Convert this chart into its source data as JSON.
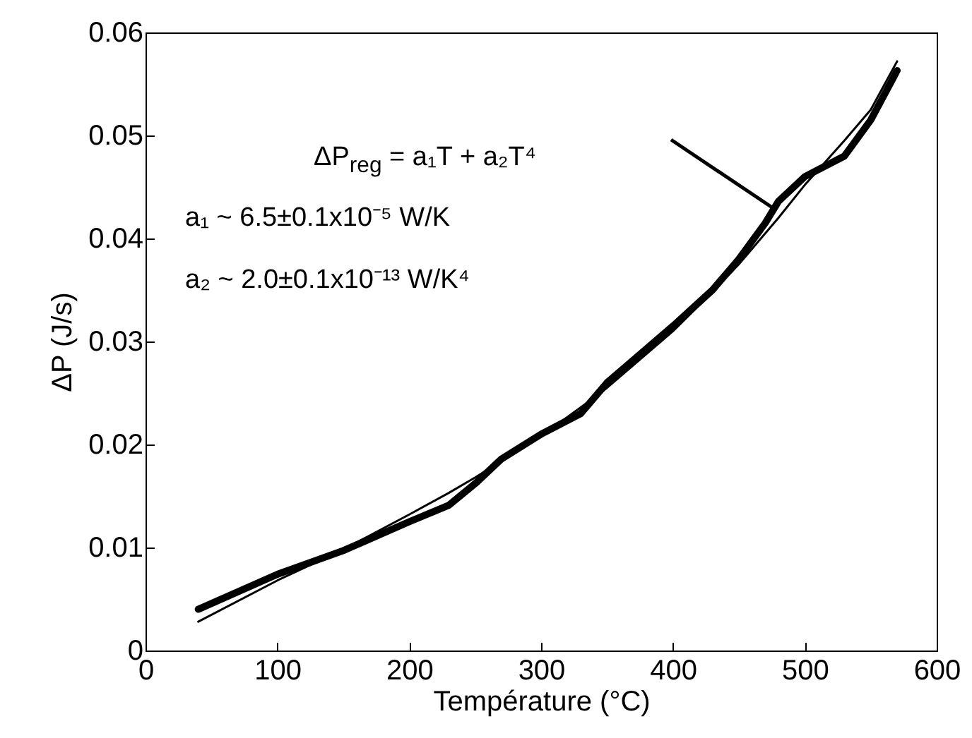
{
  "chart_data": {
    "type": "line",
    "xlabel": "Température (°C)",
    "ylabel": "ΔP (J/s)",
    "x": [
      40,
      100,
      150,
      200,
      230,
      250,
      270,
      300,
      330,
      350,
      400,
      430,
      450,
      470,
      480,
      500,
      530,
      550,
      570
    ],
    "series": [
      {
        "color": "#000000",
        "values": [
          0.004,
          0.0074,
          0.0097,
          0.0125,
          0.0141,
          0.0162,
          0.0186,
          0.021,
          0.023,
          0.026,
          0.0315,
          0.035,
          0.038,
          0.0415,
          0.0436,
          0.046,
          0.048,
          0.0515,
          0.0563
        ]
      },
      {
        "color": "#000000",
        "values": [
          0.0028,
          0.0068,
          0.0098,
          0.0132,
          0.0153,
          0.0168,
          0.0184,
          0.0208,
          0.0236,
          0.0255,
          0.031,
          0.0348,
          0.0375,
          0.0405,
          0.042,
          0.0452,
          0.0495,
          0.0525,
          0.0572
        ]
      }
    ],
    "xlim": [
      0,
      600
    ],
    "xticks": [
      0,
      100,
      200,
      300,
      400,
      500,
      600
    ],
    "ylim": [
      0,
      0.06
    ],
    "yticks": [
      0,
      0.01,
      0.02,
      0.03,
      0.04,
      0.05,
      0.06
    ],
    "annotations": [
      "ΔP$_{reg}$ = a₁T + a₂T⁴",
      "a₁ ~ 6.5±0.1x10⁻⁵ W/K",
      "a₂ ~ 2.0±0.1x10⁻¹³ W/K⁴"
    ]
  }
}
